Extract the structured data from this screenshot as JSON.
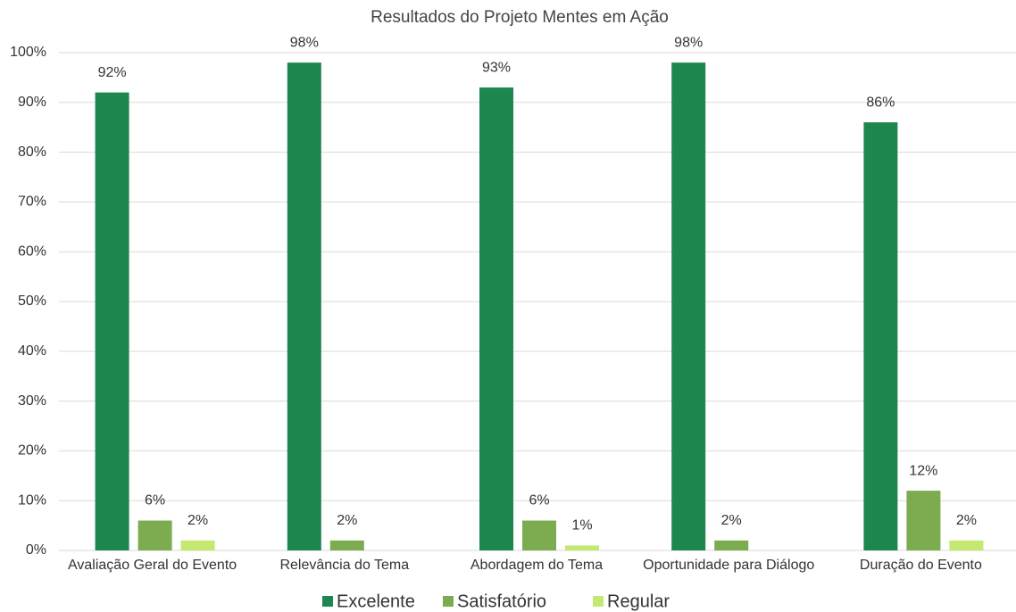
{
  "chart_data": {
    "type": "bar",
    "title": "Resultados do Projeto Mentes em Ação",
    "categories": [
      "Avaliação Geral do Evento",
      "Relevância do Tema",
      "Abordagem do Tema",
      "Oportunidade para Diálogo",
      "Duração do Evento"
    ],
    "series": [
      {
        "name": "Excelente",
        "color": "#1e8750",
        "values": [
          92,
          98,
          93,
          98,
          86
        ],
        "value_labels": [
          "92%",
          "98%",
          "93%",
          "98%",
          "86%"
        ]
      },
      {
        "name": "Satisfatório",
        "color": "#7cac4f",
        "values": [
          6,
          2,
          6,
          2,
          12
        ],
        "value_labels": [
          "6%",
          "2%",
          "6%",
          "2%",
          "12%"
        ]
      },
      {
        "name": "Regular",
        "color": "#c5e870",
        "values": [
          2,
          null,
          1,
          null,
          2
        ],
        "value_labels": [
          "2%",
          null,
          "1%",
          null,
          "2%"
        ]
      }
    ],
    "ylim": [
      0,
      100
    ],
    "yticks": [
      {
        "value": 0,
        "label": "0%"
      },
      {
        "value": 10,
        "label": "10%"
      },
      {
        "value": 20,
        "label": "20%"
      },
      {
        "value": 30,
        "label": "30%"
      },
      {
        "value": 40,
        "label": "40%"
      },
      {
        "value": 50,
        "label": "50%"
      },
      {
        "value": 60,
        "label": "60%"
      },
      {
        "value": 70,
        "label": "70%"
      },
      {
        "value": 80,
        "label": "80%"
      },
      {
        "value": 90,
        "label": "90%"
      },
      {
        "value": 100,
        "label": "100%"
      }
    ],
    "grid": true,
    "legend": "bottom"
  }
}
